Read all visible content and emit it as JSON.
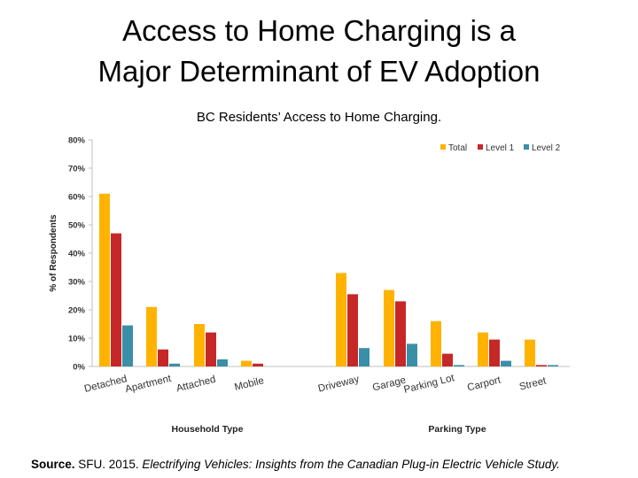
{
  "slide": {
    "title_line1": "Access to Home Charging is a",
    "title_line2": "Major Determinant of EV Adoption"
  },
  "source": {
    "label": "Source.",
    "text": "SFU. 2015.",
    "publication": "Electrifying Vehicles: Insights from the Canadian Plug-in Electric Vehicle Study."
  },
  "chart_data": {
    "type": "bar",
    "title": "BC Residents’ Access to Home Charging.",
    "ylabel": "% of Respondents",
    "ylim": [
      0,
      80
    ],
    "yticks": [
      "0%",
      "10%",
      "20%",
      "30%",
      "40%",
      "50%",
      "60%",
      "70%",
      "80%"
    ],
    "groups": [
      {
        "label": "Household  Type",
        "categories": [
          "Detached",
          "Apartment",
          "Attached",
          "Mobile"
        ]
      },
      {
        "label": "Parking Type",
        "categories": [
          "Driveway",
          "Garage",
          "Parking Lot",
          "Carport",
          "Street"
        ]
      }
    ],
    "series": [
      {
        "name": "Total",
        "color": "#FFB300",
        "values": [
          61,
          21,
          15,
          2,
          33,
          27,
          16,
          12,
          9.5
        ]
      },
      {
        "name": "Level 1",
        "color": "#C62828",
        "values": [
          47,
          6,
          12,
          1,
          25.5,
          23,
          4.5,
          9.5,
          0.5
        ]
      },
      {
        "name": "Level 2",
        "color": "#3A8FA8",
        "values": [
          14.5,
          1,
          2.5,
          0,
          6.5,
          8,
          0.5,
          2,
          0.5
        ]
      }
    ],
    "legend_position": "top-right"
  }
}
